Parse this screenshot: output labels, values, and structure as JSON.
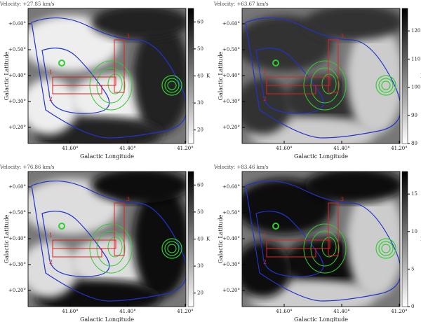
{
  "panels": [
    {
      "velocity": "Velocity: +27.85 km/s",
      "colorbar": {
        "range": [
          15,
          65
        ],
        "ticks": [
          20,
          30,
          40,
          50,
          60
        ],
        "unit": "K"
      }
    },
    {
      "velocity": "Velocity: +63.67 km/s",
      "colorbar": {
        "range": [
          80,
          128
        ],
        "ticks": [
          80,
          90,
          100,
          110,
          120
        ],
        "unit": "K"
      }
    },
    {
      "velocity": "Velocity: +76.86 km/s",
      "colorbar": {
        "range": [
          15,
          65
        ],
        "ticks": [
          20,
          30,
          40,
          50,
          60
        ],
        "unit": "K"
      }
    },
    {
      "velocity": "Velocity: +83.46 km/s",
      "colorbar": {
        "range": [
          0,
          18
        ],
        "ticks": [
          0,
          5,
          10,
          15
        ],
        "unit": "K"
      }
    }
  ],
  "x_label": "Galactic Longitude",
  "y_label": "Galactic Latitude",
  "x_ticks": [
    "41.60°",
    "41.40°",
    "41.20°"
  ],
  "y_ticks": [
    "+0.60°",
    "+0.50°",
    "+0.40°",
    "+0.30°",
    "+0.20°"
  ],
  "box_labels": [
    "1",
    "2",
    "3"
  ]
}
